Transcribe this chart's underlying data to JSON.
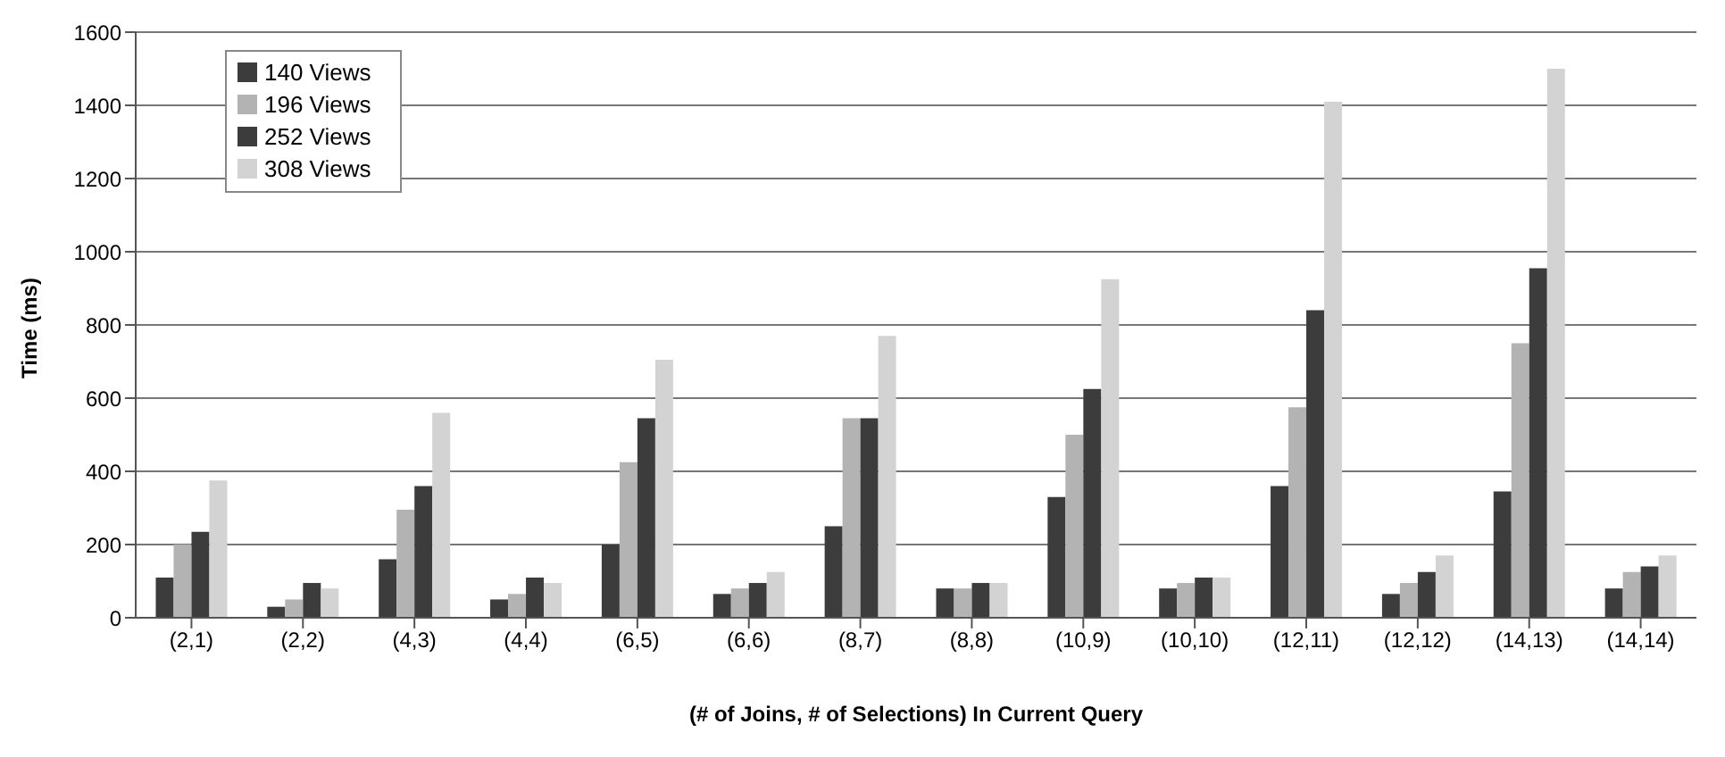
{
  "chart_data": {
    "type": "bar",
    "xlabel": "(# of Joins, # of Selections) In Current Query",
    "ylabel": "Time (ms)",
    "categories": [
      "(2,1)",
      "(2,2)",
      "(4,3)",
      "(4,4)",
      "(6,5)",
      "(6,6)",
      "(8,7)",
      "(8,8)",
      "(10,9)",
      "(10,10)",
      "(12,11)",
      "(12,12)",
      "(14,13)",
      "(14,14)"
    ],
    "series": [
      {
        "name": "140 Views",
        "color": "#3c3c3c",
        "values": [
          110,
          30,
          160,
          50,
          200,
          65,
          250,
          80,
          330,
          80,
          360,
          65,
          345,
          80
        ]
      },
      {
        "name": "196 Views",
        "color": "#b3b3b3",
        "values": [
          200,
          50,
          295,
          65,
          425,
          80,
          545,
          80,
          500,
          95,
          575,
          95,
          750,
          125
        ]
      },
      {
        "name": "252 Views",
        "color": "#3c3c3c",
        "values": [
          235,
          95,
          360,
          110,
          545,
          95,
          545,
          95,
          625,
          110,
          840,
          125,
          955,
          140
        ]
      },
      {
        "name": "308 Views",
        "color": "#d3d3d3",
        "values": [
          375,
          80,
          560,
          95,
          705,
          125,
          770,
          95,
          925,
          110,
          1410,
          170,
          1500,
          170
        ]
      }
    ],
    "ylim": [
      0,
      1600
    ],
    "yticks": [
      0,
      200,
      400,
      600,
      800,
      1000,
      1200,
      1400,
      1600
    ],
    "grid": "y",
    "legend": "top left"
  }
}
